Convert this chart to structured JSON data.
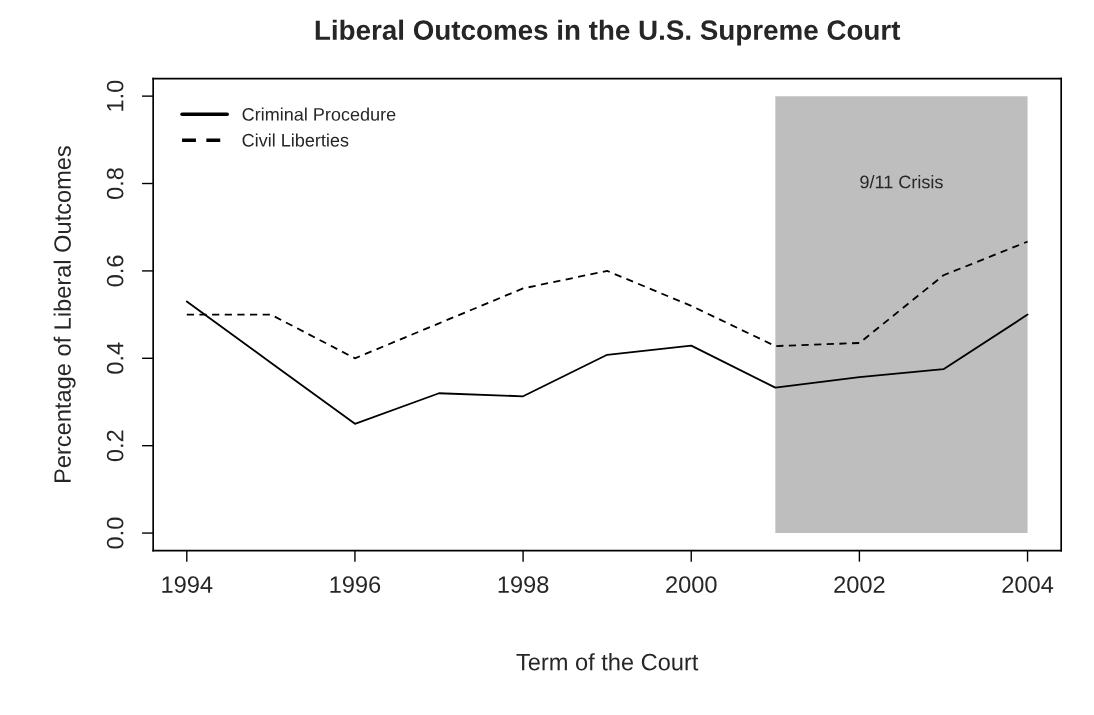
{
  "chart_data": {
    "type": "line",
    "title": "Liberal Outcomes in the U.S. Supreme Court",
    "xlabel": "Term of the Court",
    "ylabel": "Percentage of Liberal Outcomes",
    "x": [
      1994,
      1995,
      1996,
      1997,
      1998,
      1999,
      2000,
      2001,
      2002,
      2003,
      2004
    ],
    "series": [
      {
        "name": "Criminal Procedure",
        "color": "#000000",
        "line_style": "solid",
        "values": [
          0.53,
          0.39,
          0.25,
          0.32,
          0.313,
          0.408,
          0.429,
          0.333,
          0.357,
          0.375,
          0.5
        ]
      },
      {
        "name": "Civil Liberties",
        "color": "#000000",
        "line_style": "dashed",
        "values": [
          0.5,
          0.5,
          0.4,
          0.48,
          0.56,
          0.6,
          0.52,
          0.428,
          0.435,
          0.59,
          0.667
        ]
      }
    ],
    "bands": [
      {
        "axis": "x",
        "from": 2001,
        "to": 2004,
        "label": "9/11 Crisis",
        "color": "#bebebe"
      }
    ],
    "xlim": [
      1993.6,
      2004.4
    ],
    "ylim": [
      -0.04,
      1.04
    ],
    "xticks": [
      1994,
      1996,
      1998,
      2000,
      2002,
      2004
    ],
    "yticks": [
      {
        "value": 0,
        "label": "0.0"
      },
      {
        "value": 0.2,
        "label": "0.2"
      },
      {
        "value": 0.4,
        "label": "0.4"
      },
      {
        "value": 0.6,
        "label": "0.6"
      },
      {
        "value": 0.8,
        "label": "0.8"
      },
      {
        "value": 1,
        "label": "1.0"
      }
    ],
    "grid": false,
    "legend": "top left"
  }
}
